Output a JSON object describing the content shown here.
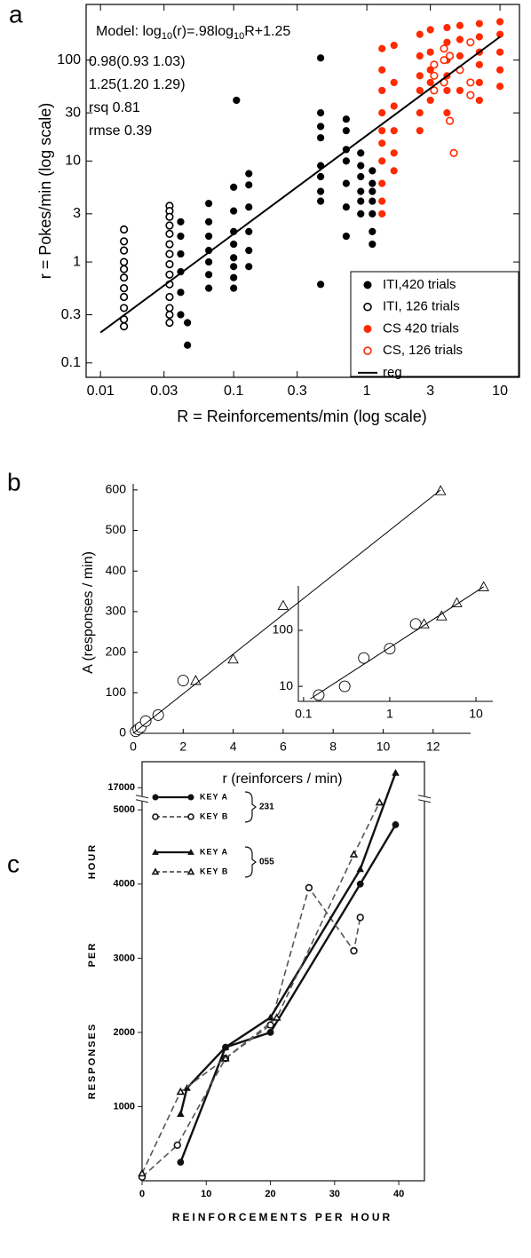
{
  "chart_data": [
    {
      "type": "scatter",
      "panel": "a",
      "log": true,
      "xlabel": "R = Reinforcements/min (log scale)",
      "ylabel": "r = Pokes/min (log scale)",
      "annotation": {
        "model": [
          "Model: log",
          "10",
          "(r)=.98log",
          "10",
          "R+1.25"
        ],
        "lines": [
          "0.98(0.93 1.03)",
          "1.25(1.20 1.29)",
          "rsq 0.81",
          "rmse 0.39"
        ]
      },
      "xlim": [
        0.0078,
        14
      ],
      "ylim": [
        0.072,
        356
      ],
      "xticks": [
        0.01,
        0.03,
        0.1,
        0.3,
        1,
        3,
        10
      ],
      "yticks": [
        0.1,
        0.3,
        1,
        3,
        10,
        30,
        100
      ],
      "legend": "lower right",
      "series": [
        {
          "name": "ITI,420 trials",
          "color": "#000000",
          "marker": "filled",
          "x": [
            0.04,
            0.04,
            0.04,
            0.04,
            0.04,
            0.04,
            0.045,
            0.045,
            0.065,
            0.065,
            0.065,
            0.065,
            0.065,
            0.065,
            0.065,
            0.1,
            0.1,
            0.1,
            0.1,
            0.1,
            0.1,
            0.1,
            0.1,
            0.105,
            0.13,
            0.13,
            0.13,
            0.13,
            0.13,
            0.13,
            0.45,
            0.45,
            0.45,
            0.45,
            0.45,
            0.45,
            0.45,
            0.45,
            0.45,
            0.7,
            0.7,
            0.7,
            0.7,
            0.7,
            0.7,
            0.7,
            0.9,
            0.9,
            0.9,
            0.9,
            0.9,
            0.9,
            1.1,
            1.1,
            1.1,
            1.1,
            1.1,
            1.1,
            1.1
          ],
          "values": [
            2.5,
            1.8,
            1.2,
            0.8,
            0.5,
            0.3,
            0.25,
            0.15,
            3.8,
            2.5,
            1.8,
            1.3,
            1.0,
            0.75,
            0.55,
            5.5,
            3.2,
            2.0,
            1.5,
            1.1,
            0.9,
            0.7,
            0.55,
            40,
            7.5,
            5.8,
            3.5,
            2.0,
            1.3,
            0.9,
            105,
            30,
            22,
            17,
            9,
            7,
            5,
            4,
            0.6,
            26,
            20,
            13,
            10,
            6,
            3.5,
            1.8,
            12,
            9,
            7,
            5,
            4,
            3,
            8,
            6,
            5,
            4,
            3,
            2,
            1.5
          ]
        },
        {
          "name": "ITI, 126 trials",
          "color": "#000000",
          "marker": "open",
          "x": [
            0.015,
            0.015,
            0.015,
            0.015,
            0.015,
            0.015,
            0.015,
            0.015,
            0.015,
            0.015,
            0.015,
            0.033,
            0.033,
            0.033,
            0.033,
            0.033,
            0.033,
            0.033,
            0.033,
            0.033,
            0.033,
            0.033,
            0.033,
            0.033,
            0.033
          ],
          "values": [
            2.1,
            1.6,
            1.3,
            1.0,
            0.85,
            0.7,
            0.55,
            0.45,
            0.35,
            0.27,
            0.23,
            3.6,
            3.2,
            2.8,
            2.3,
            1.9,
            1.5,
            1.2,
            0.95,
            0.75,
            0.6,
            0.45,
            0.35,
            0.3,
            0.25
          ]
        },
        {
          "name": "CS 420 trials",
          "color": "#ff2a00",
          "marker": "filled",
          "x": [
            1.3,
            1.3,
            1.3,
            1.3,
            1.3,
            1.3,
            1.3,
            1.3,
            1.3,
            1.3,
            1.6,
            1.6,
            1.6,
            1.6,
            1.6,
            1.6,
            2.5,
            2.5,
            2.5,
            2.5,
            2.5,
            2.5,
            3,
            3,
            3,
            3,
            3,
            4,
            4,
            4,
            4,
            4,
            4,
            5,
            5,
            5,
            5,
            5,
            7,
            7,
            7,
            7,
            7,
            7,
            10,
            10,
            10,
            10,
            10
          ],
          "values": [
            130,
            80,
            50,
            30,
            20,
            15,
            10,
            6,
            4,
            3,
            140,
            60,
            35,
            20,
            12,
            8,
            180,
            110,
            70,
            50,
            30,
            20,
            200,
            120,
            80,
            60,
            40,
            210,
            150,
            100,
            70,
            50,
            30,
            220,
            160,
            110,
            80,
            50,
            230,
            170,
            120,
            90,
            60,
            40,
            240,
            180,
            120,
            80,
            55
          ]
        },
        {
          "name": "CS, 126 trials",
          "color": "#ff2a00",
          "marker": "open",
          "x": [
            3.2,
            3.2,
            3.2,
            3.8,
            3.8,
            3.8,
            4.2,
            4.2,
            5,
            6,
            6,
            6,
            4.5
          ],
          "values": [
            90,
            70,
            50,
            130,
            100,
            60,
            110,
            25,
            80,
            150,
            60,
            45,
            12
          ]
        },
        {
          "name": "reg",
          "color": "#000000",
          "style": "line",
          "x": [
            0.01,
            10
          ],
          "values": [
            0.2,
            170
          ]
        }
      ]
    },
    {
      "type": "scatter",
      "panel": "b",
      "xlabel": "r  (reinforcers / min)",
      "ylabel": "A  (responses / min)",
      "xlim": [
        0,
        13.5
      ],
      "ylim": [
        0,
        615
      ],
      "xticks": [
        0,
        2,
        4,
        6,
        8,
        10,
        12
      ],
      "yticks": [
        0,
        100,
        200,
        300,
        400,
        500,
        600
      ],
      "series": [
        {
          "marker": "circle",
          "x": [
            0.1,
            0.2,
            0.3,
            0.5,
            1,
            2
          ],
          "values": [
            5,
            10,
            15,
            30,
            45,
            130
          ]
        },
        {
          "marker": "triangle",
          "x": [
            2.5,
            4,
            6,
            12.3
          ],
          "values": [
            130,
            183,
            315,
            598
          ]
        },
        {
          "style": "line",
          "x": [
            0,
            12.3
          ],
          "values": [
            0,
            600
          ]
        }
      ],
      "inset": {
        "log": true,
        "xlim": [
          0.087,
          15.7
        ],
        "ylim": [
          5.4,
          620
        ],
        "xticks": [
          0.1,
          1,
          10
        ],
        "yticks": [
          10,
          100
        ],
        "series": [
          {
            "marker": "circle",
            "x": [
              0.15,
              0.3,
              0.5,
              1,
              2
            ],
            "values": [
              7,
              10,
              32,
              47,
              130
            ]
          },
          {
            "marker": "triangle",
            "x": [
              2.5,
              4,
              6,
              12.3
            ],
            "values": [
              130,
              180,
              310,
              598
            ]
          },
          {
            "style": "line",
            "x": [
              0.12,
              12.3
            ],
            "values": [
              6,
              600
            ]
          }
        ]
      }
    },
    {
      "type": "line",
      "panel": "c",
      "xlabel": "REINFORCEMENTS PER HOUR",
      "ylabel": [
        "RESPONSES",
        "PER",
        "HOUR"
      ],
      "xlim": [
        0,
        44
      ],
      "ylim": [
        0,
        17350
      ],
      "axis_break": true,
      "xticks": [
        0,
        10,
        20,
        30,
        40
      ],
      "yticks": [
        1000,
        2000,
        3000,
        4000,
        5000,
        17000
      ],
      "series": [
        {
          "name": "KEY A",
          "group": "231",
          "marker": "circle",
          "filled": true,
          "dashed": false,
          "x": [
            6,
            13,
            20,
            34,
            39.5
          ],
          "values": [
            250,
            1800,
            2000,
            4000,
            4800
          ]
        },
        {
          "name": "KEY B",
          "group": "231",
          "marker": "circle",
          "filled": false,
          "dashed": true,
          "x": [
            0,
            5.5,
            13,
            20,
            26,
            33,
            34
          ],
          "values": [
            50,
            480,
            1650,
            2100,
            3950,
            3100,
            3550
          ]
        },
        {
          "name": "KEY A",
          "group": "055",
          "marker": "triangle",
          "filled": true,
          "dashed": false,
          "x": [
            6,
            7,
            13,
            20,
            34,
            39.5
          ],
          "values": [
            900,
            1250,
            1800,
            2200,
            4200,
            17200
          ]
        },
        {
          "name": "KEY B",
          "group": "055",
          "marker": "triangle",
          "filled": false,
          "dashed": true,
          "x": [
            0,
            6,
            13,
            21,
            33,
            37
          ],
          "values": [
            100,
            1200,
            1650,
            2200,
            4400,
            5100
          ]
        }
      ]
    }
  ]
}
